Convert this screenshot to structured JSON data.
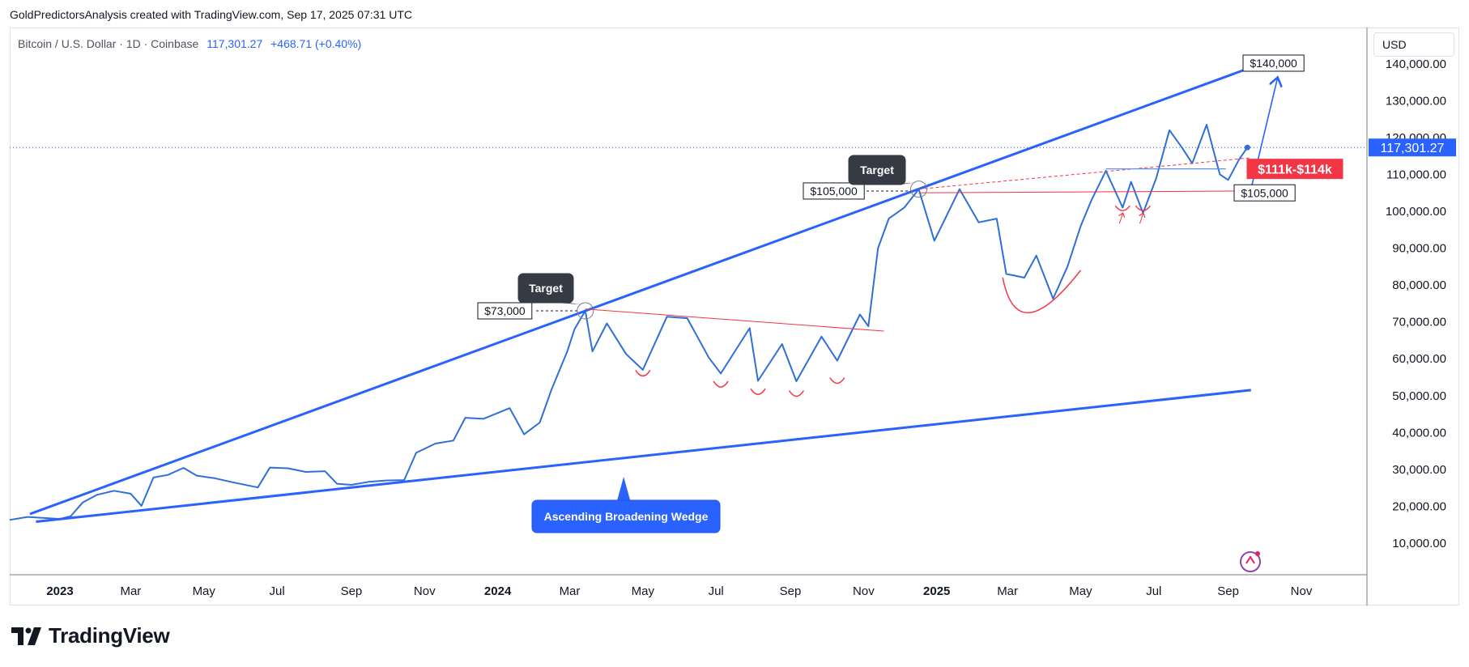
{
  "header": {
    "attribution": "GoldPredictorsAnalysis created with TradingView.com, Sep 17, 2025 07:31 UTC"
  },
  "symbol": {
    "name": "Bitcoin / U.S. Dollar · 1D · Coinbase",
    "price": "117,301.27",
    "change": "+468.71 (+0.40%)"
  },
  "currency_button": "USD",
  "last_price_label": "117,301.27",
  "brand": "TradingView",
  "colors": {
    "price_line": "#2f6fd6",
    "wedge": "#2962ff",
    "accent_red": "#f23645",
    "blue": "#2962ff"
  },
  "icons": {
    "logo": "tradingview-logo-icon",
    "ai": "sparkle-icon"
  },
  "annotations": {
    "target_1": "Target",
    "target_2": "Target",
    "level_73k": "$73,000",
    "level_105k_left": "$105,000",
    "level_105k_right": "$105,000",
    "level_140k": "$140,000",
    "range_label": "$111k-$114k",
    "pattern_label": "Ascending Broadening Wedge"
  },
  "chart_data": {
    "type": "line",
    "title": "",
    "xlabel": "",
    "ylabel": "",
    "ylim": [
      0,
      145000
    ],
    "y_ticks": [
      10000,
      20000,
      30000,
      40000,
      50000,
      60000,
      70000,
      80000,
      90000,
      100000,
      110000,
      120000,
      130000,
      140000
    ],
    "y_tick_labels": [
      "10,000.00",
      "20,000.00",
      "30,000.00",
      "40,000.00",
      "50,000.00",
      "60,000.00",
      "70,000.00",
      "80,000.00",
      "90,000.00",
      "100,000.00",
      "110,000.00",
      "120,000.00",
      "130,000.00",
      "140,000.00"
    ],
    "x_ticks": [
      "2023",
      "Mar",
      "May",
      "Jul",
      "Sep",
      "Nov",
      "2024",
      "Mar",
      "May",
      "Jul",
      "Sep",
      "Nov",
      "2025",
      "Mar",
      "May",
      "Jul",
      "Sep",
      "Nov"
    ],
    "x_tick_dates": [
      "2023-01-01",
      "2023-03-01",
      "2023-05-01",
      "2023-07-01",
      "2023-09-01",
      "2023-11-01",
      "2024-01-01",
      "2024-03-01",
      "2024-05-01",
      "2024-07-01",
      "2024-09-01",
      "2024-11-01",
      "2025-01-01",
      "2025-03-01",
      "2025-05-01",
      "2025-07-01",
      "2025-09-01",
      "2025-11-01"
    ],
    "grid": false,
    "series": [
      {
        "values": [
          [
            "2022-11-20",
            16300
          ],
          [
            "2022-12-05",
            17100
          ],
          [
            "2022-12-20",
            16800
          ],
          [
            "2023-01-01",
            16550
          ],
          [
            "2023-01-10",
            17300
          ],
          [
            "2023-01-20",
            21000
          ],
          [
            "2023-02-01",
            23100
          ],
          [
            "2023-02-15",
            24200
          ],
          [
            "2023-03-01",
            23400
          ],
          [
            "2023-03-10",
            20100
          ],
          [
            "2023-03-20",
            27800
          ],
          [
            "2023-04-01",
            28500
          ],
          [
            "2023-04-14",
            30400
          ],
          [
            "2023-04-25",
            28300
          ],
          [
            "2023-05-10",
            27600
          ],
          [
            "2023-05-25",
            26500
          ],
          [
            "2023-06-15",
            25100
          ],
          [
            "2023-06-25",
            30500
          ],
          [
            "2023-07-10",
            30300
          ],
          [
            "2023-07-25",
            29300
          ],
          [
            "2023-08-10",
            29500
          ],
          [
            "2023-08-20",
            26100
          ],
          [
            "2023-09-01",
            25800
          ],
          [
            "2023-09-15",
            26600
          ],
          [
            "2023-10-01",
            27000
          ],
          [
            "2023-10-15",
            27100
          ],
          [
            "2023-10-25",
            34500
          ],
          [
            "2023-11-10",
            37000
          ],
          [
            "2023-11-25",
            37800
          ],
          [
            "2023-12-05",
            44000
          ],
          [
            "2023-12-20",
            43700
          ],
          [
            "2024-01-11",
            46600
          ],
          [
            "2024-01-23",
            39500
          ],
          [
            "2024-02-05",
            42700
          ],
          [
            "2024-02-15",
            51800
          ],
          [
            "2024-02-28",
            62000
          ],
          [
            "2024-03-05",
            68000
          ],
          [
            "2024-03-14",
            73000
          ],
          [
            "2024-03-20",
            62000
          ],
          [
            "2024-04-01",
            69600
          ],
          [
            "2024-04-17",
            61300
          ],
          [
            "2024-05-01",
            57000
          ],
          [
            "2024-05-21",
            71400
          ],
          [
            "2024-06-07",
            71000
          ],
          [
            "2024-06-25",
            60300
          ],
          [
            "2024-07-05",
            56000
          ],
          [
            "2024-07-29",
            68300
          ],
          [
            "2024-08-05",
            54000
          ],
          [
            "2024-08-25",
            64000
          ],
          [
            "2024-09-06",
            53900
          ],
          [
            "2024-09-27",
            66000
          ],
          [
            "2024-10-10",
            59500
          ],
          [
            "2024-10-29",
            72000
          ],
          [
            "2024-11-05",
            68800
          ],
          [
            "2024-11-13",
            90000
          ],
          [
            "2024-11-22",
            98000
          ],
          [
            "2024-12-05",
            101000
          ],
          [
            "2024-12-17",
            106000
          ],
          [
            "2024-12-30",
            92000
          ],
          [
            "2025-01-20",
            106000
          ],
          [
            "2025-02-05",
            97000
          ],
          [
            "2025-02-20",
            98000
          ],
          [
            "2025-02-28",
            83000
          ],
          [
            "2025-03-15",
            82000
          ],
          [
            "2025-03-25",
            88000
          ],
          [
            "2025-04-08",
            76300
          ],
          [
            "2025-04-20",
            85000
          ],
          [
            "2025-05-01",
            96000
          ],
          [
            "2025-05-10",
            103000
          ],
          [
            "2025-05-22",
            111000
          ],
          [
            "2025-06-05",
            101000
          ],
          [
            "2025-06-12",
            108000
          ],
          [
            "2025-06-22",
            99500
          ],
          [
            "2025-07-03",
            109000
          ],
          [
            "2025-07-14",
            122000
          ],
          [
            "2025-07-25",
            117000
          ],
          [
            "2025-08-02",
            113000
          ],
          [
            "2025-08-14",
            123500
          ],
          [
            "2025-08-25",
            110000
          ],
          [
            "2025-09-01",
            108500
          ],
          [
            "2025-09-10",
            114000
          ],
          [
            "2025-09-17",
            117300
          ]
        ]
      }
    ]
  }
}
